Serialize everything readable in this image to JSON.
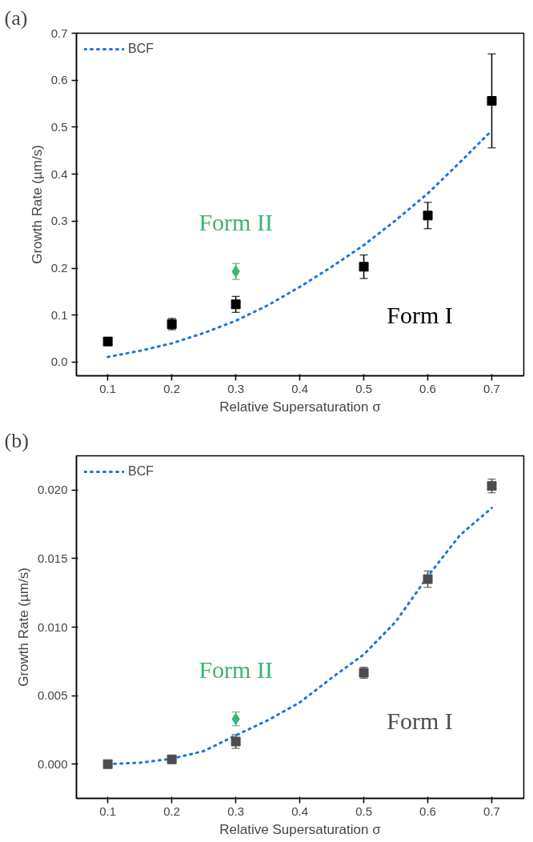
{
  "chart_data": [
    {
      "type": "scatter",
      "title": "(a)",
      "xlabel": "Relative Supersaturation σ",
      "ylabel": "Growth Rate (µm/s)",
      "xlim": [
        0.051,
        0.75
      ],
      "ylim": [
        -0.029,
        0.7
      ],
      "xticks": [
        0.1,
        0.2,
        0.3,
        0.4,
        0.5,
        0.6,
        0.7
      ],
      "yticks": [
        {
          "value": 0,
          "label": "0.0"
        },
        0.1,
        0.2,
        0.3,
        0.4,
        0.5,
        0.6,
        0.7
      ],
      "grid": false,
      "legend": "top left",
      "series": [
        {
          "name": "BCF",
          "type": "line",
          "line_style": "dotted",
          "marker": "none",
          "color": "#1a73e8",
          "x": [
            0.1,
            0.15,
            0.2,
            0.25,
            0.3,
            0.35,
            0.4,
            0.45,
            0.5,
            0.55,
            0.6,
            0.65,
            0.7
          ],
          "values": [
            0.011,
            0.024,
            0.04,
            0.062,
            0.088,
            0.121,
            0.16,
            0.203,
            0.249,
            0.302,
            0.359,
            0.425,
            0.493
          ]
        },
        {
          "name": "Form I",
          "marker": "square",
          "color": "#000000",
          "x": [
            0.1,
            0.2,
            0.3,
            0.5,
            0.6,
            0.7
          ],
          "values": [
            0.044,
            0.081,
            0.123,
            0.203,
            0.312,
            0.556
          ],
          "errors": [
            0.008,
            0.012,
            0.017,
            0.025,
            0.028,
            0.1
          ]
        },
        {
          "name": "Form II",
          "marker": "diamond",
          "color": "#3cb371",
          "x": [
            0.3
          ],
          "values": [
            0.193
          ],
          "errors": [
            0.017
          ]
        }
      ]
    },
    {
      "type": "scatter",
      "title": "(b)",
      "xlabel": "Relative Supersaturation σ",
      "ylabel": "Growth Rate (µm/s)",
      "xlim": [
        0.051,
        0.75
      ],
      "ylim": [
        -0.0025,
        0.0225
      ],
      "xticks": [
        0.1,
        0.2,
        0.3,
        0.4,
        0.5,
        0.6,
        0.7
      ],
      "yticks": [
        {
          "value": 0,
          "label": "0.000"
        },
        {
          "value": 0.005,
          "label": "0.005"
        },
        {
          "value": 0.01,
          "label": "0.010"
        },
        {
          "value": 0.015,
          "label": "0.015"
        },
        {
          "value": 0.02,
          "label": "0.020"
        }
      ],
      "grid": false,
      "legend": "top left",
      "series": [
        {
          "name": "BCF",
          "type": "line",
          "line_style": "dotted",
          "marker": "none",
          "color": "#1a73e8",
          "x": [
            0.1,
            0.15,
            0.2,
            0.25,
            0.3,
            0.35,
            0.4,
            0.45,
            0.5,
            0.55,
            0.6,
            0.65,
            0.7
          ],
          "values": [
            0.0,
            0.0001,
            0.0004,
            0.00095,
            0.0021,
            0.0032,
            0.0045,
            0.0063,
            0.008,
            0.0104,
            0.0137,
            0.0167,
            0.0187
          ]
        },
        {
          "name": "Form I",
          "marker": "square",
          "color": "#4d4d4d",
          "x": [
            0.1,
            0.2,
            0.3,
            0.5,
            0.6,
            0.7
          ],
          "values": [
            0.0,
            0.00035,
            0.00165,
            0.00667,
            0.0135,
            0.0203
          ],
          "errors": [
            0.0001,
            0.0002,
            0.0005,
            0.0004,
            0.0006,
            0.0005
          ]
        },
        {
          "name": "Form II",
          "marker": "diamond",
          "color": "#3cb371",
          "x": [
            0.3
          ],
          "values": [
            0.0033
          ],
          "errors": [
            0.0005
          ]
        }
      ]
    }
  ]
}
